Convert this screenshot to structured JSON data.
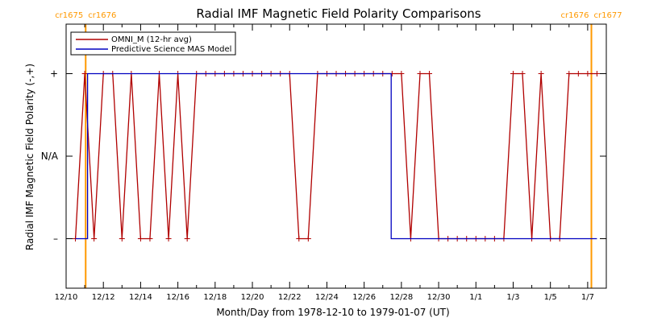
{
  "chart_data": {
    "type": "line",
    "title": "Radial IMF Magnetic Field Polarity Comparisons",
    "xlabel": "Month/Day from 1978-12-10 to 1979-01-07 (UT)",
    "ylabel": "Radial IMF Magnetic Field Polarity (-,+)",
    "xlim": [
      0,
      29
    ],
    "ylim": [
      -1.6,
      1.6
    ],
    "x_ticks": [
      {
        "x": 0,
        "label": "12/10"
      },
      {
        "x": 2,
        "label": "12/12"
      },
      {
        "x": 4,
        "label": "12/14"
      },
      {
        "x": 6,
        "label": "12/16"
      },
      {
        "x": 8,
        "label": "12/18"
      },
      {
        "x": 10,
        "label": "12/20"
      },
      {
        "x": 12,
        "label": "12/22"
      },
      {
        "x": 14,
        "label": "12/24"
      },
      {
        "x": 16,
        "label": "12/26"
      },
      {
        "x": 18,
        "label": "12/28"
      },
      {
        "x": 20,
        "label": "12/30"
      },
      {
        "x": 22,
        "label": "1/1"
      },
      {
        "x": 24,
        "label": "1/3"
      },
      {
        "x": 26,
        "label": "1/5"
      },
      {
        "x": 28,
        "label": "1/7"
      }
    ],
    "y_ticks": [
      {
        "y": 1,
        "label": "+"
      },
      {
        "y": 0,
        "label": "N/A"
      },
      {
        "y": -1,
        "label": "–"
      }
    ],
    "rotation_markers": [
      {
        "x": 1.05,
        "left_label": "cr1675",
        "right_label": "cr1676"
      },
      {
        "x": 28.2,
        "left_label": "cr1676",
        "right_label": "cr1677"
      }
    ],
    "legend_position": "top-left",
    "series": [
      {
        "name": "OMNI_M (12-hr avg)",
        "color": "#b00000",
        "marker": "plus",
        "x": [
          0.5,
          1.0,
          1.5,
          2.0,
          2.5,
          3.0,
          3.5,
          4.0,
          4.5,
          5.0,
          5.5,
          6.0,
          6.5,
          7.0,
          7.5,
          8.0,
          8.5,
          9.0,
          9.5,
          10.0,
          10.5,
          11.0,
          11.5,
          12.0,
          12.5,
          13.0,
          13.5,
          14.0,
          14.5,
          15.0,
          15.5,
          16.0,
          16.5,
          17.0,
          17.5,
          18.0,
          18.5,
          19.0,
          19.5,
          20.0,
          20.5,
          21.0,
          21.5,
          22.0,
          22.5,
          23.0,
          23.5,
          24.0,
          24.5,
          25.0,
          25.5,
          26.0,
          26.5,
          27.0,
          27.5,
          28.0,
          28.5
        ],
        "y": [
          -1,
          1,
          -1,
          1,
          1,
          -1,
          1,
          -1,
          -1,
          1,
          -1,
          1,
          -1,
          1,
          1,
          1,
          1,
          1,
          1,
          1,
          1,
          1,
          1,
          1,
          -1,
          -1,
          1,
          1,
          1,
          1,
          1,
          1,
          1,
          1,
          1,
          1,
          -1,
          1,
          1,
          -1,
          -1,
          -1,
          -1,
          -1,
          -1,
          -1,
          -1,
          1,
          1,
          -1,
          1,
          -1,
          -1,
          1,
          1,
          1,
          1
        ]
      },
      {
        "name": "Predictive Science MAS Model",
        "color": "#0000c0",
        "x": [
          0.5,
          1.05,
          1.05,
          1.15,
          1.15,
          17.45,
          17.45,
          28.5
        ],
        "y": [
          -1,
          -1,
          -1,
          -1,
          1,
          1,
          -1,
          -1
        ]
      }
    ]
  }
}
